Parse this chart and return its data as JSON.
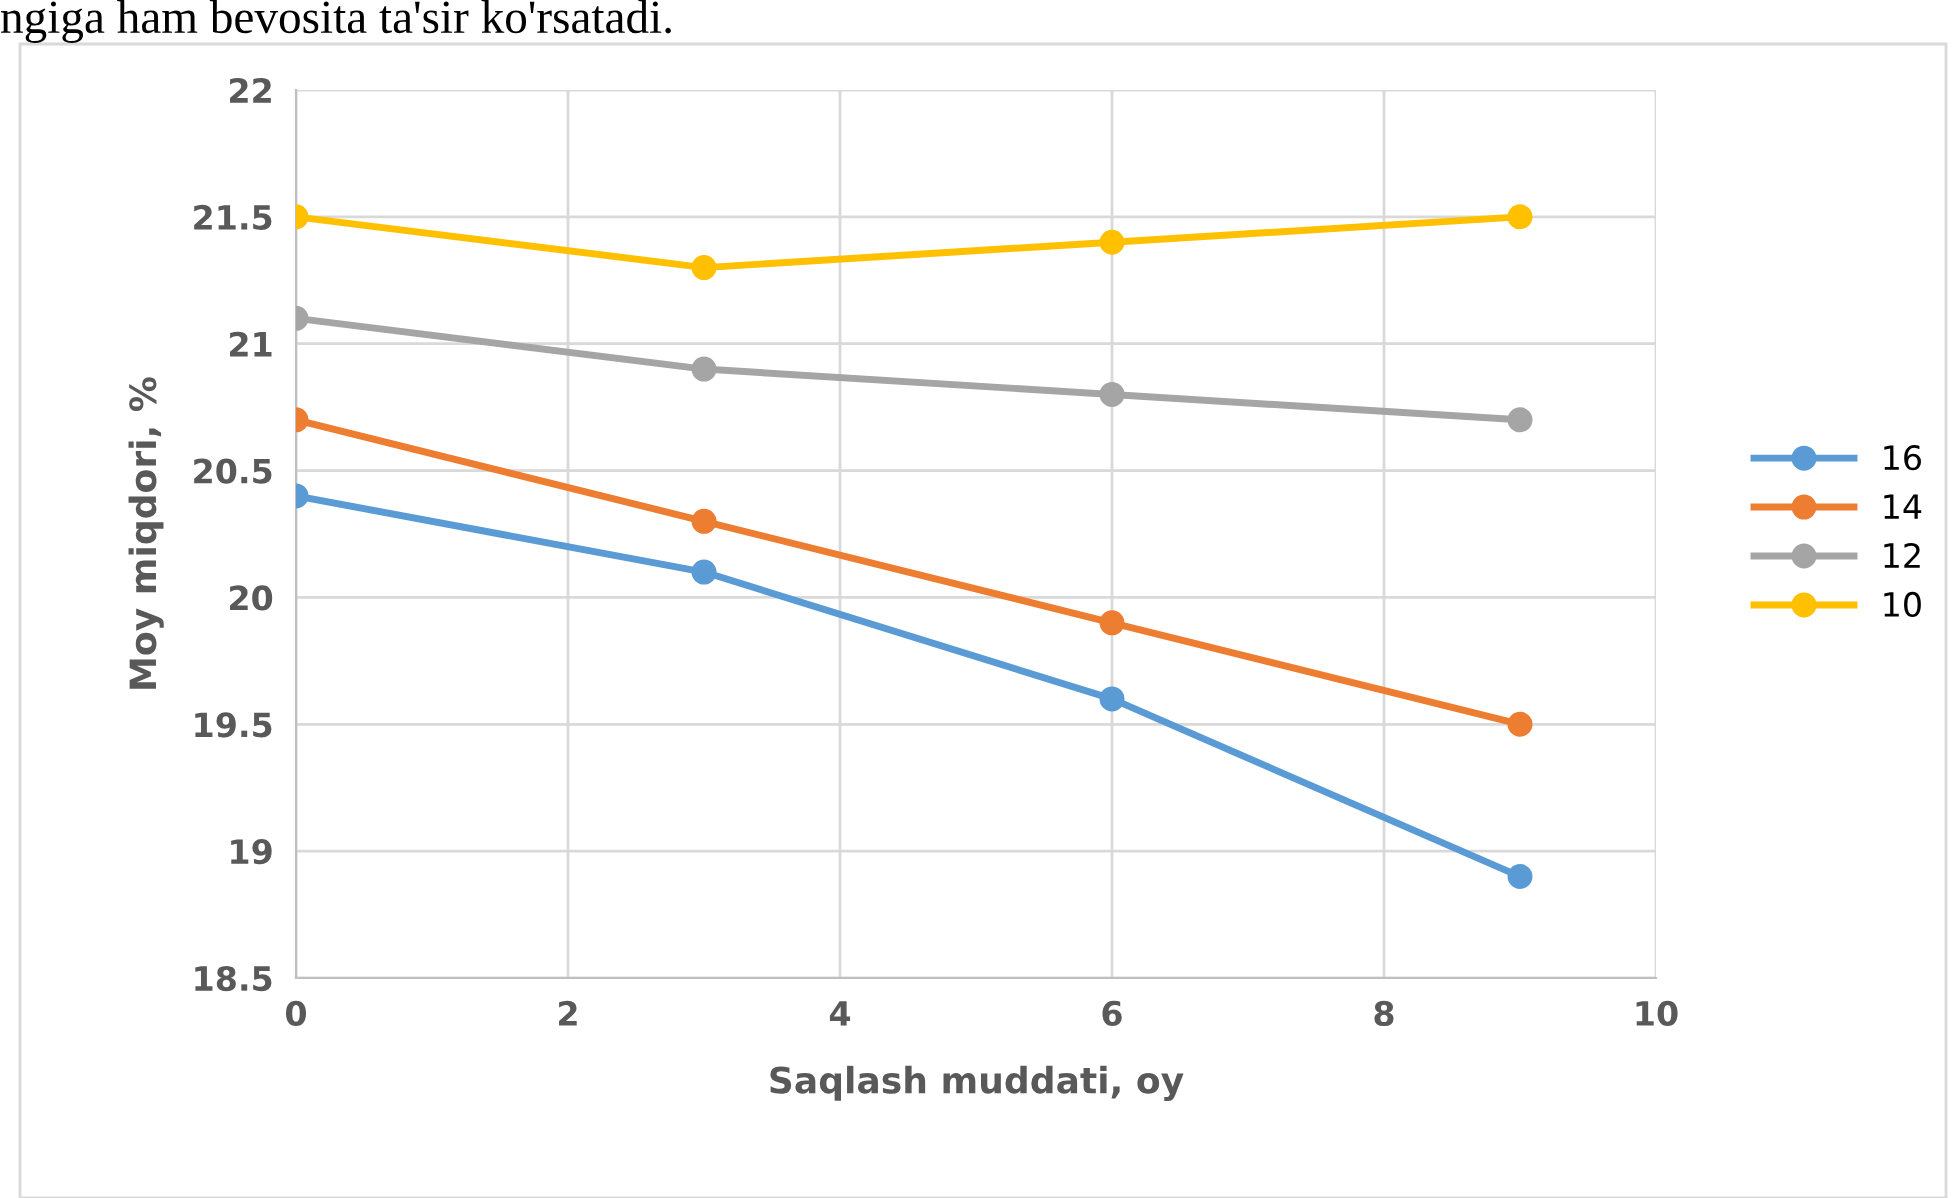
{
  "chart_data": {
    "type": "line",
    "xlabel": "Saqlash muddati, oy",
    "ylabel": "Moy miqdori, %",
    "annotations": [
      "ngiga ham bevosita ta'sir ko'rsatadi."
    ],
    "x": [
      0,
      3,
      6,
      9
    ],
    "series": [
      {
        "name": "16",
        "color": "#5b9bd5",
        "values": [
          20.4,
          20.1,
          19.6,
          18.9
        ]
      },
      {
        "name": "14",
        "color": "#ed7d31",
        "values": [
          20.7,
          20.3,
          19.9,
          19.5
        ]
      },
      {
        "name": "12",
        "color": "#a5a5a5",
        "values": [
          21.1,
          20.9,
          20.8,
          20.7
        ]
      },
      {
        "name": "10",
        "color": "#ffc000",
        "values": [
          21.5,
          21.3,
          21.4,
          21.5
        ]
      }
    ],
    "xlim": [
      0,
      10
    ],
    "xticks": [
      0,
      2,
      4,
      6,
      8,
      10
    ],
    "ylim": [
      18.5,
      22
    ],
    "yticks": [
      18.5,
      19,
      19.5,
      20,
      20.5,
      21,
      21.5,
      22
    ],
    "grid": true,
    "legend": "right",
    "marker": "circle",
    "line_style": "solid"
  }
}
